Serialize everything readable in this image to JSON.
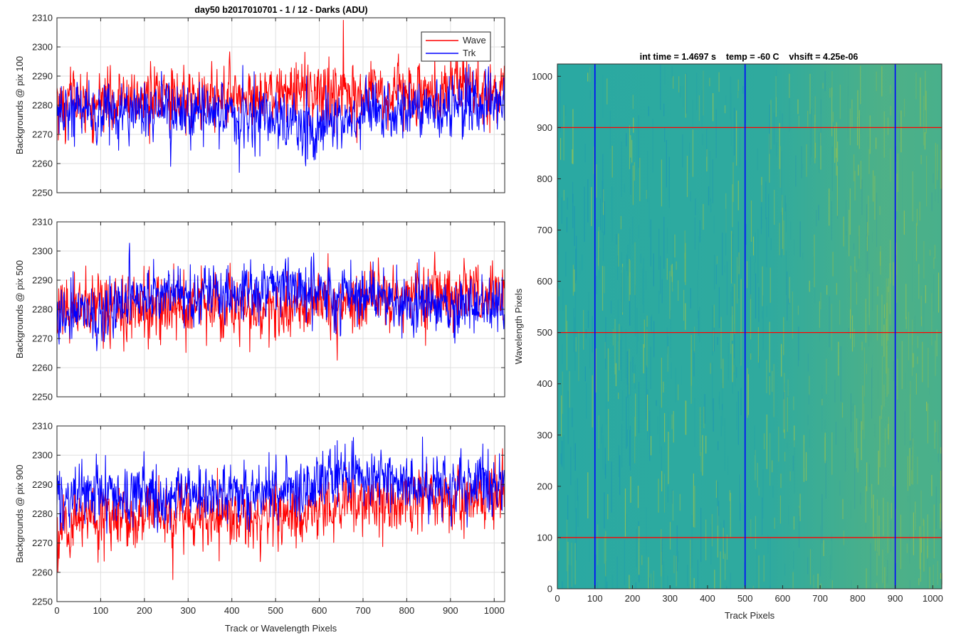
{
  "figure": {
    "left_title": "day50 b2017010701 - 1 / 12 - Darks (ADU)",
    "right_title": "int time = 1.4697 s    temp = -60 C    vhsift = 4.25e-06"
  },
  "chart_data": [
    {
      "type": "line",
      "title": "day50 b2017010701 - 1 / 12 - Darks (ADU)",
      "xlabel": "",
      "ylabel": "Backgrounds @ pix 100",
      "xlim": [
        0,
        1024
      ],
      "ylim": [
        2250,
        2310
      ],
      "xticks": [
        "0",
        "100",
        "200",
        "300",
        "400",
        "500",
        "600",
        "700",
        "800",
        "900",
        "1000"
      ],
      "yticks": [
        "2250",
        "2260",
        "2270",
        "2280",
        "2290",
        "2300",
        "2310"
      ],
      "show_xtick_labels": false,
      "grid": true,
      "legend": {
        "location": "top-right",
        "entries": [
          "Wave",
          "Trk"
        ]
      },
      "series": [
        {
          "name": "Wave",
          "color": "#ff0000",
          "mean": 2281,
          "noise": 5.5,
          "drift": [
            [
              0,
              0
            ],
            [
              300,
              1
            ],
            [
              500,
              3
            ],
            [
              700,
              3
            ],
            [
              1024,
              4
            ]
          ],
          "values_sampled_every_64px": [
            2282,
            2281,
            2280,
            2283,
            2279,
            2281,
            2282,
            2283,
            2284,
            2285,
            2286,
            2287,
            2286,
            2285,
            2284,
            2285
          ]
        },
        {
          "name": "Trk",
          "color": "#0000ff",
          "mean": 2279,
          "noise": 5,
          "drift": [
            [
              0,
              0
            ],
            [
              250,
              -1
            ],
            [
              450,
              -3
            ],
            [
              600,
              -6
            ],
            [
              700,
              -2
            ],
            [
              1024,
              3
            ]
          ],
          "values_sampled_every_64px": [
            2280,
            2279,
            2278,
            2279,
            2278,
            2277,
            2276,
            2275,
            2273,
            2274,
            2275,
            2277,
            2278,
            2279,
            2281,
            2282
          ]
        }
      ]
    },
    {
      "type": "line",
      "title": "",
      "xlabel": "",
      "ylabel": "Backgrounds @ pix 500",
      "xlim": [
        0,
        1024
      ],
      "ylim": [
        2250,
        2310
      ],
      "xticks": [
        "0",
        "100",
        "200",
        "300",
        "400",
        "500",
        "600",
        "700",
        "800",
        "900",
        "1000"
      ],
      "yticks": [
        "2250",
        "2260",
        "2270",
        "2280",
        "2290",
        "2300",
        "2310"
      ],
      "show_xtick_labels": false,
      "grid": true,
      "series": [
        {
          "name": "Wave",
          "color": "#ff0000",
          "mean": 2280,
          "noise": 5.5,
          "drift": [
            [
              0,
              0
            ],
            [
              600,
              1
            ],
            [
              750,
              5
            ],
            [
              1024,
              5
            ]
          ],
          "values_sampled_every_64px": [
            2279,
            2280,
            2280,
            2279,
            2280,
            2281,
            2279,
            2280,
            2280,
            2281,
            2283,
            2285,
            2286,
            2285,
            2285,
            2285
          ]
        },
        {
          "name": "Trk",
          "color": "#0000ff",
          "mean": 2282,
          "noise": 5,
          "drift": [
            [
              0,
              -5
            ],
            [
              100,
              -2
            ],
            [
              200,
              3
            ],
            [
              400,
              4
            ],
            [
              550,
              6
            ],
            [
              700,
              1
            ],
            [
              800,
              -1
            ],
            [
              1024,
              0
            ]
          ],
          "values_sampled_every_64px": [
            2277,
            2278,
            2283,
            2285,
            2286,
            2285,
            2286,
            2287,
            2288,
            2287,
            2285,
            2283,
            2282,
            2281,
            2282,
            2282
          ]
        }
      ]
    },
    {
      "type": "line",
      "title": "",
      "xlabel": "Track or Wavelength Pixels",
      "ylabel": "Backgrounds @ pix 900",
      "xlim": [
        0,
        1024
      ],
      "ylim": [
        2250,
        2310
      ],
      "xticks": [
        "0",
        "100",
        "200",
        "300",
        "400",
        "500",
        "600",
        "700",
        "800",
        "900",
        "1000"
      ],
      "yticks": [
        "2250",
        "2260",
        "2270",
        "2280",
        "2290",
        "2300",
        "2310"
      ],
      "show_xtick_labels": true,
      "grid": true,
      "series": [
        {
          "name": "Wave",
          "color": "#ff0000",
          "mean": 2278,
          "noise": 5.5,
          "drift": [
            [
              0,
              0
            ],
            [
              500,
              1
            ],
            [
              700,
              6
            ],
            [
              1024,
              7
            ]
          ],
          "values_sampled_every_64px": [
            2278,
            2277,
            2278,
            2279,
            2278,
            2279,
            2279,
            2279,
            2280,
            2282,
            2283,
            2284,
            2285,
            2285,
            2284,
            2285
          ]
        },
        {
          "name": "Trk",
          "color": "#0000ff",
          "mean": 2286,
          "noise": 5,
          "drift": [
            [
              0,
              0
            ],
            [
              400,
              1
            ],
            [
              700,
              7
            ],
            [
              850,
              4
            ],
            [
              1024,
              5
            ]
          ],
          "values_sampled_every_64px": [
            2287,
            2286,
            2286,
            2287,
            2286,
            2287,
            2287,
            2288,
            2289,
            2290,
            2292,
            2293,
            2292,
            2291,
            2291,
            2291
          ]
        }
      ]
    },
    {
      "type": "heatmap",
      "title": "int time = 1.4697 s    temp = -60 C    vhsift = 4.25e-06",
      "xlabel": "Track Pixels",
      "ylabel": "Wavelength Pixels",
      "xlim": [
        0,
        1024
      ],
      "ylim": [
        0,
        1024
      ],
      "xticks": [
        "0",
        "100",
        "200",
        "300",
        "400",
        "500",
        "600",
        "700",
        "800",
        "900",
        "1000"
      ],
      "yticks": [
        "0",
        "100",
        "200",
        "300",
        "400",
        "500",
        "600",
        "700",
        "800",
        "900",
        "1000"
      ],
      "colormap": "parula",
      "base_color": "#2aa9a2",
      "highlight_color": "#8fbf56",
      "highlight_region": "brighter yellow-green toward the right (track pixels 650-1024)",
      "marker_lines": {
        "vertical_at_track": [
          100,
          500,
          900
        ],
        "vertical_color": "#0000ff",
        "horizontal_at_wavelength": [
          100,
          500,
          900
        ],
        "horizontal_color": "#ff0000"
      }
    }
  ]
}
